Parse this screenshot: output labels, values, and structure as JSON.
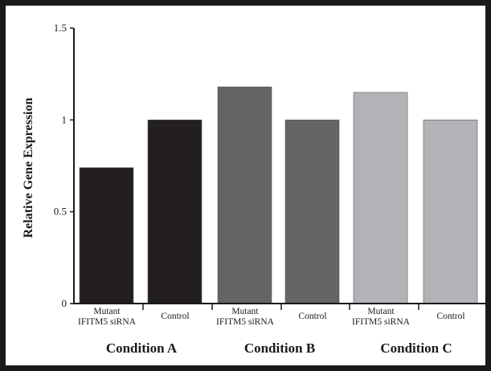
{
  "chart_data": {
    "type": "bar",
    "title": "",
    "xlabel": "",
    "ylabel": "Relative Gene Expression",
    "ylim": [
      0,
      1.5
    ],
    "yticks": [
      {
        "value": 0,
        "label": "0"
      },
      {
        "value": 0.5,
        "label": "0.5"
      },
      {
        "value": 1,
        "label": "1"
      },
      {
        "value": 1.5,
        "label": "1.5"
      }
    ],
    "groups": [
      {
        "name": "Condition A",
        "color": "#231f20",
        "bars": [
          {
            "label": [
              "Mutant",
              "IFITM5 siRNA"
            ],
            "value": 0.74
          },
          {
            "label": [
              "Control"
            ],
            "value": 1.0
          }
        ]
      },
      {
        "name": "Condition B",
        "color": "#636466",
        "bars": [
          {
            "label": [
              "Mutant",
              "IFITM5 siRNA"
            ],
            "value": 1.18
          },
          {
            "label": [
              "Control"
            ],
            "value": 1.0
          }
        ]
      },
      {
        "name": "Condition C",
        "color": "#b1b3b6",
        "bars": [
          {
            "label": [
              "Mutant",
              "IFITM5 siRNA"
            ],
            "value": 1.15
          },
          {
            "label": [
              "Control"
            ],
            "value": 1.0
          }
        ]
      }
    ],
    "grid": false,
    "legend": "none"
  }
}
